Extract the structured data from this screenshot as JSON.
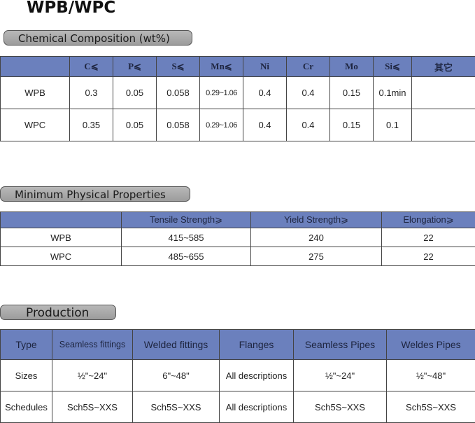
{
  "title": "WPB/WPC",
  "chemical": {
    "heading": "Chemical Composition (wt%)",
    "columns": [
      "",
      "C⩽",
      "P⩽",
      "S⩽",
      "Mn⩽",
      "Ni",
      "Cr",
      "Mo",
      "Si⩽",
      "其它"
    ],
    "rows": [
      [
        "WPB",
        "0.3",
        "0.05",
        "0.058",
        "0.29~1.06",
        "0.4",
        "0.4",
        "0.15",
        "0.1min",
        ""
      ],
      [
        "WPC",
        "0.35",
        "0.05",
        "0.058",
        "0.29~1.06",
        "0.4",
        "0.4",
        "0.15",
        "0.1",
        ""
      ]
    ]
  },
  "physical": {
    "heading": "Minimum Physical Properties",
    "columns": [
      "",
      "Tensile  Strength⩾",
      "Yield  Strength⩾",
      "Elongation⩾"
    ],
    "rows": [
      [
        "WPB",
        "415~585",
        "240",
        "22"
      ],
      [
        "WPC",
        "485~655",
        "275",
        "22"
      ]
    ]
  },
  "production": {
    "heading": "Production",
    "columns": [
      "Type",
      "Seamless fittings",
      "Welded fittings",
      "Flanges",
      "Seamless Pipes",
      "Weldes Pipes"
    ],
    "rows": [
      [
        "Sizes",
        "½\"~24\"",
        "6\"~48\"",
        "All descriptions",
        "½\"~24\"",
        "½\"~48\""
      ],
      [
        "Schedules",
        "Sch5S~XXS",
        "Sch5S~XXS",
        "All descriptions",
        "Sch5S~XXS",
        "Sch5S~XXS"
      ]
    ]
  },
  "colors": {
    "header": "#6b80bd",
    "pill": "#a8a8a8"
  }
}
